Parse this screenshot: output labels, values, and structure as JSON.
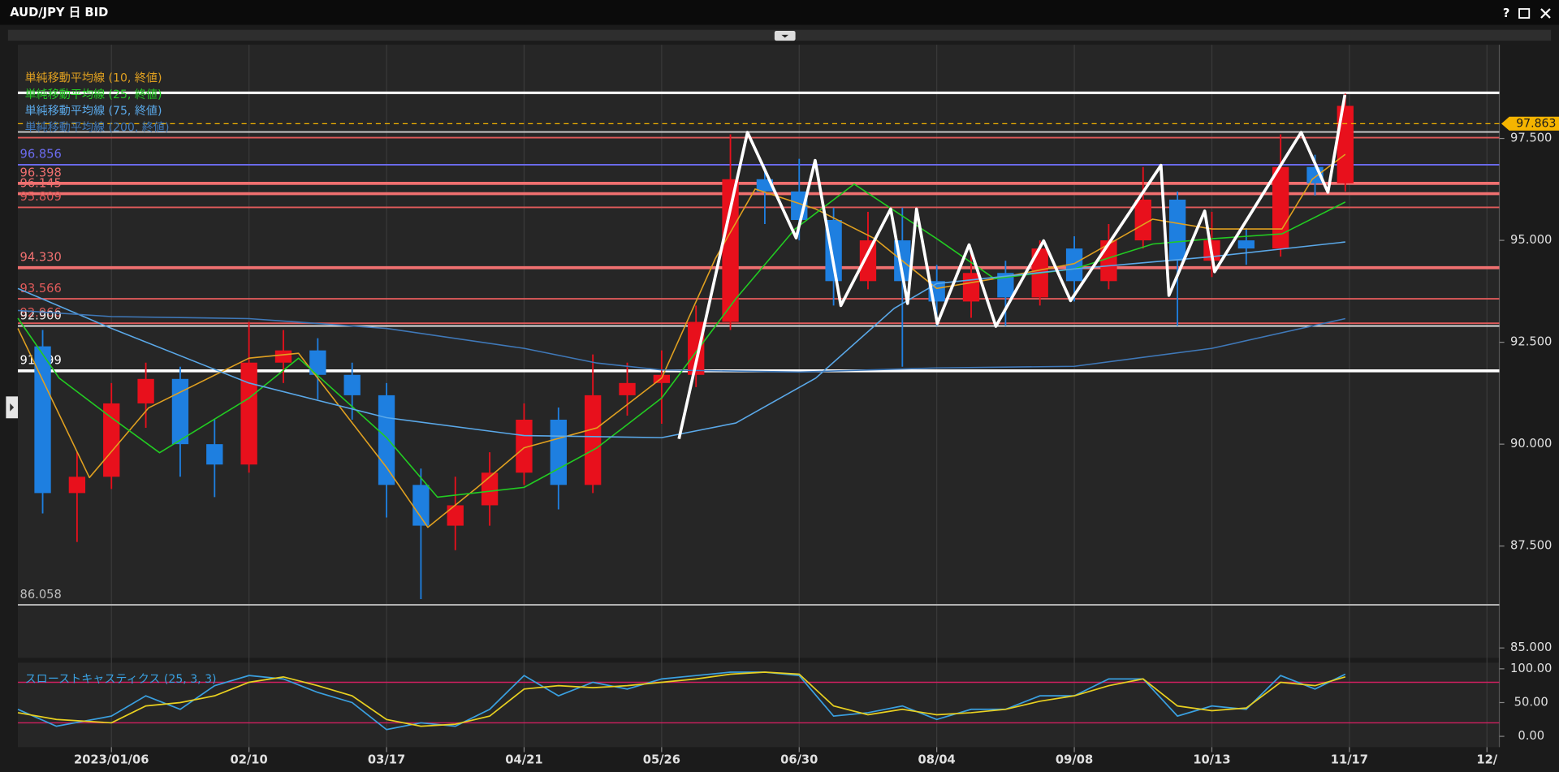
{
  "window": {
    "title": "AUD/JPY 日 BID",
    "help": "?"
  },
  "chart_data": [
    {
      "type": "candlestick",
      "xlim": [
        -0.68,
        10.09
      ],
      "xticks": [
        {
          "value": 0,
          "label": "2023/01/06"
        },
        {
          "value": 1,
          "label": "02/10"
        },
        {
          "value": 2,
          "label": "03/17"
        },
        {
          "value": 3,
          "label": "04/21"
        },
        {
          "value": 4,
          "label": "05/26"
        },
        {
          "value": 5,
          "label": "06/30"
        },
        {
          "value": 6,
          "label": "08/04"
        },
        {
          "value": 7,
          "label": "09/08"
        },
        {
          "value": 8,
          "label": "10/13"
        },
        {
          "value": 9,
          "label": "11/17"
        },
        {
          "value": 10,
          "label": "12/"
        }
      ],
      "ylim": [
        84.76,
        99.8
      ],
      "yticks": [
        {
          "value": 97.5,
          "label": "97.500"
        },
        {
          "value": 95,
          "label": "95.000"
        },
        {
          "value": 92.5,
          "label": "92.500"
        },
        {
          "value": 90,
          "label": "90.000"
        },
        {
          "value": 87.5,
          "label": "87.500"
        },
        {
          "value": 85,
          "label": "85.000"
        }
      ],
      "up_color": "#e8101c",
      "down_color": "#1e7fe0",
      "candles": {
        "x": [
          -0.5,
          -0.25,
          0,
          0.25,
          0.5,
          0.75,
          1.0,
          1.25,
          1.5,
          1.75,
          2.0,
          2.25,
          2.5,
          2.75,
          3.0,
          3.25,
          3.5,
          3.75,
          4.0,
          4.25,
          4.5,
          4.75,
          5.0,
          5.25,
          5.5,
          5.75,
          6.0,
          6.25,
          6.5,
          6.75,
          7.0,
          7.25,
          7.5,
          7.75,
          8.0,
          8.25,
          8.5,
          8.75,
          8.97
        ],
        "open": [
          92.4,
          88.8,
          89.2,
          91.0,
          91.6,
          90.0,
          89.5,
          92.0,
          92.3,
          91.7,
          91.2,
          89.0,
          88.0,
          88.5,
          89.3,
          90.6,
          89.0,
          91.2,
          91.5,
          91.7,
          93.0,
          96.5,
          96.2,
          95.5,
          94.0,
          95.0,
          94.0,
          93.5,
          94.2,
          93.6,
          94.8,
          94.0,
          95.0,
          96.0,
          94.5,
          95.0,
          94.8,
          96.8,
          96.4
        ],
        "high": [
          92.8,
          89.8,
          91.5,
          92.0,
          91.9,
          90.6,
          93.0,
          92.8,
          92.6,
          92.0,
          91.5,
          89.4,
          89.2,
          89.8,
          91.0,
          90.9,
          92.2,
          92.0,
          92.3,
          93.4,
          97.6,
          96.8,
          97.0,
          95.8,
          95.7,
          95.8,
          94.4,
          94.8,
          94.5,
          95.0,
          95.1,
          95.4,
          96.8,
          96.2,
          95.7,
          95.3,
          97.6,
          97.1,
          98.6
        ],
        "low": [
          88.3,
          87.6,
          88.9,
          90.4,
          89.2,
          88.7,
          89.3,
          91.5,
          91.1,
          90.6,
          88.2,
          86.2,
          87.4,
          88.0,
          89.0,
          88.4,
          88.8,
          90.7,
          90.5,
          91.4,
          92.8,
          95.4,
          95.0,
          93.4,
          93.8,
          91.9,
          92.9,
          93.1,
          92.9,
          93.4,
          93.5,
          93.8,
          94.8,
          92.9,
          94.1,
          94.4,
          94.6,
          96.1,
          96.2
        ],
        "close": [
          88.8,
          89.2,
          91.0,
          91.6,
          90.0,
          89.5,
          92.0,
          92.3,
          91.7,
          91.2,
          89.0,
          88.0,
          88.5,
          89.3,
          90.6,
          89.0,
          91.2,
          91.5,
          91.7,
          93.0,
          96.5,
          96.2,
          95.5,
          94.0,
          95.0,
          94.0,
          93.5,
          94.2,
          93.6,
          94.8,
          94.0,
          95.0,
          96.0,
          94.5,
          95.0,
          94.8,
          96.8,
          96.4,
          98.3
        ]
      },
      "series": [
        {
          "name": "単純移動平均線 (10, 終値)",
          "color": "#e0a020",
          "x": [
            -0.68,
            -0.16,
            0.27,
            1,
            1.36,
            2,
            2.3,
            2.66,
            3,
            3.53,
            4,
            4.39,
            4.68,
            5.12,
            5.55,
            6,
            6.42,
            7,
            7.57,
            8,
            8.51,
            8.73,
            8.97
          ],
          "values": [
            92.84,
            89.18,
            90.89,
            92.11,
            92.23,
            89.43,
            87.96,
            88.94,
            89.91,
            90.4,
            91.62,
            94.55,
            96.26,
            95.77,
            95.04,
            93.82,
            94.06,
            94.43,
            95.52,
            95.28,
            95.28,
            96.5,
            97.11
          ]
        },
        {
          "name": "単純移動平均線 (25, 終値)",
          "color": "#22cc22",
          "x": [
            -0.68,
            -0.38,
            0,
            0.35,
            1,
            1.36,
            2,
            2.37,
            3,
            3.53,
            4,
            4.54,
            4.97,
            5.4,
            6,
            6.42,
            7,
            7.57,
            8,
            8.51,
            8.97
          ],
          "values": [
            93.09,
            91.62,
            90.65,
            89.79,
            91.13,
            92.11,
            90.16,
            88.7,
            88.94,
            89.91,
            91.13,
            93.57,
            95.28,
            96.38,
            95.04,
            94.06,
            94.3,
            94.91,
            95.04,
            95.16,
            95.94
          ]
        },
        {
          "name": "単純移動平均線 (75, 終値)",
          "color": "#5aa8e8",
          "x": [
            -0.68,
            0,
            1,
            2,
            3,
            4,
            4.54,
            5.12,
            5.69,
            6,
            7,
            8,
            8.97
          ],
          "values": [
            93.82,
            92.84,
            91.5,
            90.65,
            90.21,
            90.16,
            90.52,
            91.62,
            93.33,
            93.94,
            94.3,
            94.6,
            94.96
          ]
        },
        {
          "name": "単純移動平均線 (200, 終値)",
          "color": "#3f78b8",
          "x": [
            -0.68,
            0,
            1,
            2,
            3,
            3.53,
            4,
            5,
            6,
            7,
            8,
            8.97
          ],
          "values": [
            93.28,
            93.13,
            93.08,
            92.84,
            92.35,
            91.99,
            91.82,
            91.77,
            91.87,
            91.91,
            92.35,
            93.08
          ]
        }
      ],
      "trendline": {
        "color": "#ffffff",
        "x": [
          4.126,
          4.624,
          4.978,
          5.116,
          5.303,
          5.665,
          5.788,
          5.853,
          6.004,
          6.235,
          6.43,
          6.777,
          6.973,
          7.63,
          7.688,
          7.948,
          8.02,
          8.649,
          8.844,
          8.967
        ],
        "values": [
          90.13,
          97.65,
          95.06,
          96.96,
          93.4,
          95.77,
          93.45,
          95.77,
          92.96,
          94.89,
          92.89,
          94.99,
          93.52,
          96.84,
          93.65,
          95.72,
          94.23,
          97.65,
          96.18,
          98.57
        ]
      },
      "levels": [
        {
          "value": 98.62,
          "label": null,
          "color": "#ffffff",
          "width": 2.5
        },
        {
          "value": 97.66,
          "label": null,
          "color": "#cfcfcf",
          "width": 1.5
        },
        {
          "value": 97.52,
          "label": null,
          "color": "#e05a5a",
          "width": 1.5
        },
        {
          "value": 96.856,
          "label": "96.856",
          "color": "#6c6cf0",
          "width": 1.5
        },
        {
          "value": 96.398,
          "label": "96.398",
          "color": "#f07070",
          "width": 3
        },
        {
          "value": 96.145,
          "label": "96.145",
          "color": "#f07070",
          "width": 3
        },
        {
          "value": 95.809,
          "label": "95.809",
          "color": "#e05a5a",
          "width": 1.5
        },
        {
          "value": 94.33,
          "label": "94.330",
          "color": "#f07070",
          "width": 3
        },
        {
          "value": 93.566,
          "label": "93.566",
          "color": "#e05a5a",
          "width": 1.5
        },
        {
          "value": 92.966,
          "label": "92.966",
          "color": "#e05a5a",
          "width": 1.5
        },
        {
          "value": 92.9,
          "label": "92.900",
          "color": "#e8e8e8",
          "width": 1.5
        },
        {
          "value": 91.799,
          "label": "91.799",
          "color": "#ffffff",
          "width": 3
        },
        {
          "value": 86.058,
          "label": "86.058",
          "color": "#bfbfbf",
          "width": 1.5
        }
      ],
      "last_price": {
        "value": 97.863,
        "label": "97.863",
        "color": "#f5b400"
      }
    },
    {
      "type": "line",
      "title": "スローストキャスティクス (25, 3, 3)",
      "title_color": "#3aa0e0",
      "xlim": [
        -0.68,
        10.09
      ],
      "ylim": [
        -16,
        109
      ],
      "yticks": [
        {
          "value": 100,
          "label": "100.00"
        },
        {
          "value": 50,
          "label": "50.00"
        },
        {
          "value": 0,
          "label": "0.00"
        }
      ],
      "bands": [
        80,
        20
      ],
      "band_color": "#d02060",
      "series": [
        {
          "color": "#3aa0e0",
          "x": [
            -0.68,
            -0.4,
            0,
            0.25,
            0.5,
            0.75,
            1.0,
            1.25,
            1.5,
            1.75,
            2.0,
            2.25,
            2.5,
            2.75,
            3.0,
            3.25,
            3.5,
            3.75,
            4.0,
            4.25,
            4.5,
            4.75,
            5.0,
            5.25,
            5.5,
            5.75,
            6.0,
            6.25,
            6.5,
            6.75,
            7.0,
            7.25,
            7.5,
            7.75,
            8.0,
            8.25,
            8.5,
            8.75,
            8.97
          ],
          "values": [
            40,
            15,
            30,
            60,
            40,
            75,
            90,
            85,
            65,
            50,
            10,
            20,
            15,
            40,
            90,
            60,
            80,
            70,
            85,
            90,
            95,
            95,
            90,
            30,
            35,
            45,
            25,
            40,
            40,
            60,
            60,
            85,
            85,
            30,
            45,
            40,
            90,
            70,
            92
          ]
        },
        {
          "color": "#e8d020",
          "x": [
            -0.68,
            -0.4,
            0,
            0.25,
            0.5,
            0.75,
            1.0,
            1.25,
            1.5,
            1.75,
            2.0,
            2.25,
            2.5,
            2.75,
            3.0,
            3.25,
            3.5,
            3.75,
            4.0,
            4.25,
            4.5,
            4.75,
            5.0,
            5.25,
            5.5,
            5.75,
            6.0,
            6.25,
            6.5,
            6.75,
            7.0,
            7.25,
            7.5,
            7.75,
            8.0,
            8.25,
            8.5,
            8.75,
            8.97
          ],
          "values": [
            35,
            25,
            20,
            45,
            50,
            60,
            80,
            88,
            75,
            60,
            25,
            15,
            18,
            30,
            70,
            75,
            72,
            75,
            80,
            85,
            92,
            95,
            92,
            45,
            32,
            40,
            32,
            35,
            40,
            52,
            60,
            75,
            85,
            45,
            38,
            42,
            80,
            75,
            88
          ]
        }
      ]
    }
  ]
}
